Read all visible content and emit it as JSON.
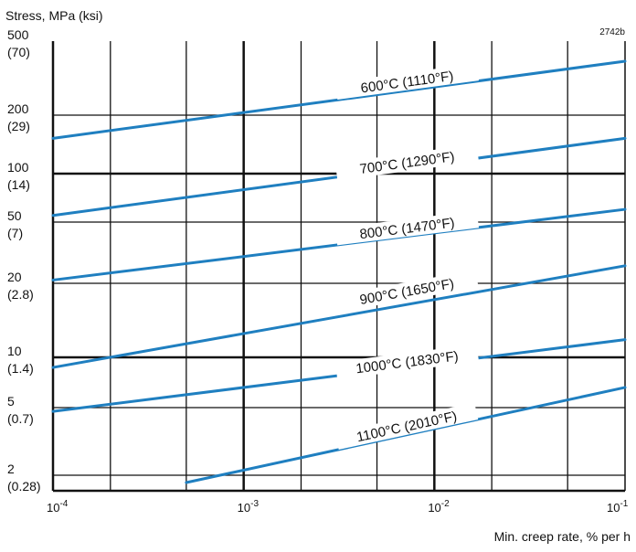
{
  "chart_data": {
    "type": "line",
    "title": "",
    "figure_id": "2742b",
    "ylabel": "Stress, MPa (ksi)",
    "xlabel": "Min. creep rate, % per h",
    "x_scale": "log",
    "y_scale": "log",
    "xlim": [
      0.0001,
      0.1
    ],
    "ylim": [
      1.6,
      500
    ],
    "grid": true,
    "x_ticks": [
      {
        "value": 0.0001,
        "base": "10",
        "exp": "-4"
      },
      {
        "value": 0.001,
        "base": "10",
        "exp": "-3"
      },
      {
        "value": 0.01,
        "base": "10",
        "exp": "-2"
      },
      {
        "value": 0.1,
        "base": "10",
        "exp": "-1"
      }
    ],
    "x_minor_ticks": [
      0.0002,
      0.0005,
      0.002,
      0.005,
      0.02,
      0.05
    ],
    "y_ticks": [
      {
        "value": 500,
        "mpa": "500",
        "ksi": "(70)"
      },
      {
        "value": 200,
        "mpa": "200",
        "ksi": "(29)"
      },
      {
        "value": 100,
        "mpa": "100",
        "ksi": "(14)"
      },
      {
        "value": 50,
        "mpa": "50",
        "ksi": "(7)"
      },
      {
        "value": 20,
        "mpa": "20",
        "ksi": "(2.8)"
      },
      {
        "value": 10,
        "mpa": "10",
        "ksi": "(1.4)"
      },
      {
        "value": 5,
        "mpa": "5",
        "ksi": "(0.7)"
      },
      {
        "value": 2,
        "mpa": "2",
        "ksi": "(0.28)"
      }
    ],
    "line_color": "#1f7fc0",
    "grid_color": "#111111",
    "series": [
      {
        "name": "600°C (1110°F)",
        "x": [
          0.0001,
          0.1
        ],
        "y": [
          152,
          390
        ]
      },
      {
        "name": "700°C (1290°F)",
        "x": [
          0.0001,
          0.1
        ],
        "y": [
          55,
          152
        ]
      },
      {
        "name": "800°C (1470°F)",
        "x": [
          0.0001,
          0.1
        ],
        "y": [
          21,
          60
        ]
      },
      {
        "name": "900°C (1650°F)",
        "x": [
          0.0001,
          0.1
        ],
        "y": [
          8.7,
          26
        ]
      },
      {
        "name": "1000°C (1830°F)",
        "x": [
          0.0001,
          0.1
        ],
        "y": [
          4.75,
          11.8
        ]
      },
      {
        "name": "1100°C (2010°F)",
        "x": [
          0.0005,
          0.1
        ],
        "y": [
          1.8,
          6.6
        ]
      }
    ]
  }
}
